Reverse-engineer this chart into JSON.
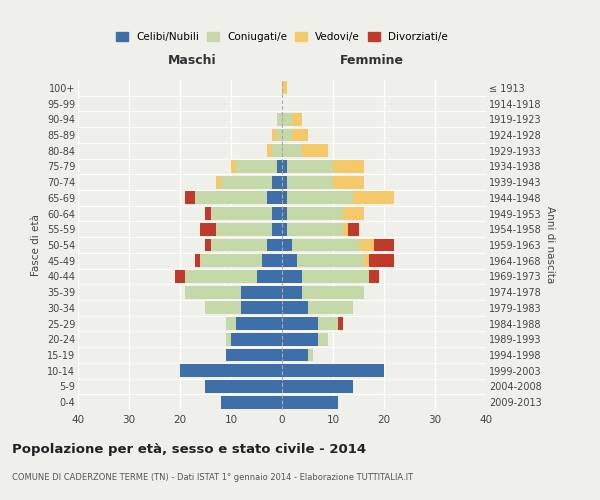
{
  "age_groups": [
    "0-4",
    "5-9",
    "10-14",
    "15-19",
    "20-24",
    "25-29",
    "30-34",
    "35-39",
    "40-44",
    "45-49",
    "50-54",
    "55-59",
    "60-64",
    "65-69",
    "70-74",
    "75-79",
    "80-84",
    "85-89",
    "90-94",
    "95-99",
    "100+"
  ],
  "birth_years": [
    "2009-2013",
    "2004-2008",
    "1999-2003",
    "1994-1998",
    "1989-1993",
    "1984-1988",
    "1979-1983",
    "1974-1978",
    "1969-1973",
    "1964-1968",
    "1959-1963",
    "1954-1958",
    "1949-1953",
    "1944-1948",
    "1939-1943",
    "1934-1938",
    "1929-1933",
    "1924-1928",
    "1919-1923",
    "1914-1918",
    "≤ 1913"
  ],
  "male": {
    "celibi": [
      12,
      15,
      20,
      11,
      10,
      9,
      8,
      8,
      5,
      4,
      3,
      2,
      2,
      3,
      2,
      1,
      0,
      0,
      0,
      0,
      0
    ],
    "coniugati": [
      0,
      0,
      0,
      0,
      1,
      2,
      7,
      11,
      14,
      12,
      11,
      11,
      12,
      14,
      10,
      8,
      2,
      1,
      1,
      0,
      0
    ],
    "vedovi": [
      0,
      0,
      0,
      0,
      0,
      0,
      0,
      0,
      0,
      0,
      0,
      0,
      0,
      0,
      1,
      1,
      1,
      1,
      0,
      0,
      0
    ],
    "divorziati": [
      0,
      0,
      0,
      0,
      0,
      0,
      0,
      0,
      2,
      1,
      1,
      3,
      1,
      2,
      0,
      0,
      0,
      0,
      0,
      0,
      0
    ]
  },
  "female": {
    "nubili": [
      11,
      14,
      20,
      5,
      7,
      7,
      5,
      4,
      4,
      3,
      2,
      1,
      1,
      1,
      1,
      1,
      0,
      0,
      0,
      0,
      0
    ],
    "coniugate": [
      0,
      0,
      0,
      1,
      2,
      4,
      9,
      12,
      13,
      13,
      13,
      11,
      11,
      13,
      9,
      9,
      4,
      2,
      2,
      0,
      0
    ],
    "vedove": [
      0,
      0,
      0,
      0,
      0,
      0,
      0,
      0,
      0,
      1,
      3,
      1,
      4,
      8,
      6,
      6,
      5,
      3,
      2,
      0,
      1
    ],
    "divorziate": [
      0,
      0,
      0,
      0,
      0,
      1,
      0,
      0,
      2,
      5,
      4,
      2,
      0,
      0,
      0,
      0,
      0,
      0,
      0,
      0,
      0
    ]
  },
  "colors": {
    "celibi": "#3f6fa8",
    "coniugati": "#c5d8a8",
    "vedovi": "#f5c869",
    "divorziati": "#c0392b"
  },
  "xlim": 40,
  "title": "Popolazione per età, sesso e stato civile - 2014",
  "subtitle": "COMUNE DI CADERZONE TERME (TN) - Dati ISTAT 1° gennaio 2014 - Elaborazione TUTTITALIA.IT",
  "xlabel_left": "Maschi",
  "xlabel_right": "Femmine",
  "ylabel_left": "Fasce di età",
  "ylabel_right": "Anni di nascita",
  "background_color": "#f0f0eb"
}
